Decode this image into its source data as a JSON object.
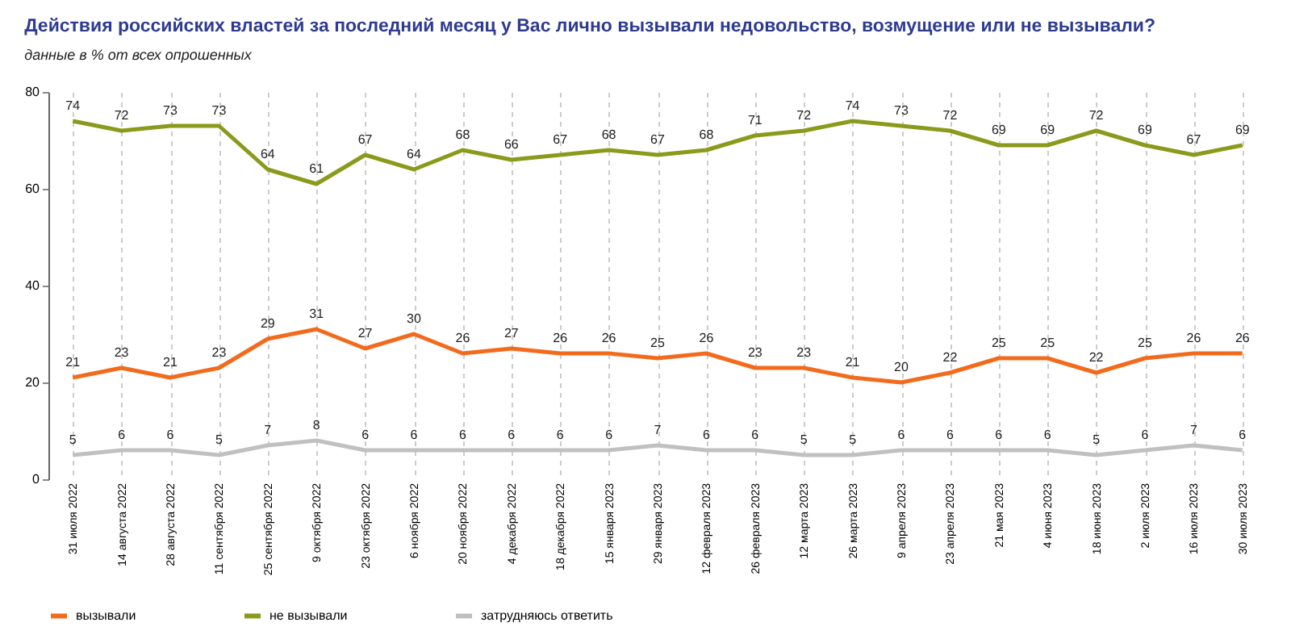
{
  "chart_data": {
    "type": "line",
    "title": "Действия российских властей за последний месяц у Вас лично вызывали недовольство, возмущение или не вызывали?",
    "subtitle": "данные в % от всех опрошенных",
    "categories": [
      "31 июля 2022",
      "14 августа 2022",
      "28 августа 2022",
      "11 сентября 2022",
      "25 сентября 2022",
      "9 октября 2022",
      "23 октября 2022",
      "6 ноября 2022",
      "20 ноября 2022",
      "4 декабря 2022",
      "18 декабря 2022",
      "15 января 2023",
      "29 января 2023",
      "12 февраля 2023",
      "26 февраля 2023",
      "12 марта 2023",
      "26 марта 2023",
      "9 апреля 2023",
      "23 апреля 2023",
      "21 мая 2023",
      "4 июня 2023",
      "18 июня 2023",
      "2 июля 2023",
      "16 июля 2023",
      "30 июля 2023"
    ],
    "series": [
      {
        "name": "вызывали",
        "color": "#f26b1d",
        "values": [
          21,
          23,
          21,
          23,
          29,
          31,
          27,
          30,
          26,
          27,
          26,
          26,
          25,
          26,
          23,
          23,
          21,
          20,
          22,
          25,
          25,
          22,
          25,
          26,
          26
        ]
      },
      {
        "name": "не вызывали",
        "color": "#8a9a1a",
        "values": [
          74,
          72,
          73,
          73,
          64,
          61,
          67,
          64,
          68,
          66,
          67,
          68,
          67,
          68,
          71,
          72,
          74,
          73,
          72,
          69,
          69,
          72,
          69,
          67,
          69
        ]
      },
      {
        "name": "затрудняюсь ответить",
        "color": "#c0c0c0",
        "values": [
          5,
          6,
          6,
          5,
          7,
          8,
          6,
          6,
          6,
          6,
          6,
          6,
          7,
          6,
          6,
          5,
          5,
          6,
          6,
          6,
          6,
          5,
          6,
          7,
          6
        ]
      }
    ],
    "ylim": [
      0,
      80
    ],
    "yticks": [
      0,
      20,
      40,
      60,
      80
    ],
    "grid": "x",
    "legend": "bottom",
    "data_labels": true,
    "marker": "none",
    "line_style": "solid"
  }
}
